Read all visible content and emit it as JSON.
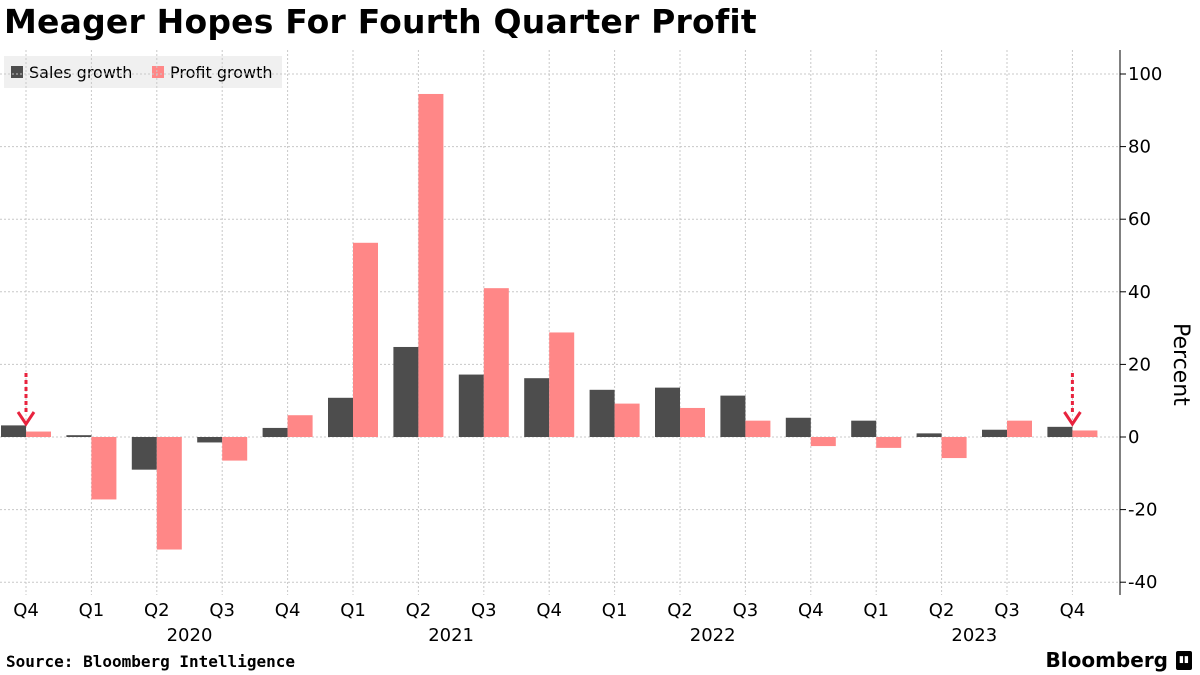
{
  "title": "Meager Hopes For Fourth Quarter Profit",
  "source": "Source: Bloomberg Intelligence",
  "brand": "Bloomberg",
  "brand_icon": "bloomberg-terminal-icon",
  "colors": {
    "sales": "#4d4d4d",
    "profit": "#ff8787",
    "arrow": "#e8233e",
    "grid": "#c8c8c8"
  },
  "chart_data": {
    "type": "bar",
    "title": "Meager Hopes For Fourth Quarter Profit",
    "ylabel": "Percent",
    "xlabel": "",
    "ylim": [
      -40,
      105
    ],
    "yticks": [
      100,
      80,
      60,
      40,
      20,
      0,
      -20,
      -40
    ],
    "ytick_labels": [
      "100",
      "80",
      "60",
      "40",
      "20",
      "0",
      "-20",
      "-40"
    ],
    "categories": [
      "Q4",
      "Q1",
      "Q2",
      "Q3",
      "Q4",
      "Q1",
      "Q2",
      "Q3",
      "Q4",
      "Q1",
      "Q2",
      "Q3",
      "Q4",
      "Q1",
      "Q2",
      "Q3",
      "Q4"
    ],
    "year_labels": [
      {
        "label": "2020",
        "start": 1,
        "end": 4
      },
      {
        "label": "2021",
        "start": 5,
        "end": 8
      },
      {
        "label": "2022",
        "start": 9,
        "end": 12
      },
      {
        "label": "2023",
        "start": 13,
        "end": 16
      }
    ],
    "series": [
      {
        "name": "Sales growth",
        "values": [
          3.2,
          0.5,
          -9.0,
          -1.5,
          2.5,
          10.8,
          24.8,
          17.2,
          16.2,
          13.0,
          13.6,
          11.4,
          5.3,
          4.5,
          1.0,
          2.0,
          2.8
        ]
      },
      {
        "name": "Profit growth",
        "values": [
          1.5,
          -17.2,
          -31.0,
          -6.5,
          6.0,
          53.5,
          94.5,
          41.0,
          28.8,
          9.2,
          8.0,
          4.5,
          -2.5,
          -3.0,
          -5.8,
          4.5,
          1.8
        ]
      }
    ],
    "legend_position": "top-left",
    "grid": true,
    "annotations": [
      {
        "type": "arrow",
        "category_index": 0,
        "description": "down arrow marker"
      },
      {
        "type": "arrow",
        "category_index": 16,
        "description": "down arrow marker"
      }
    ]
  }
}
